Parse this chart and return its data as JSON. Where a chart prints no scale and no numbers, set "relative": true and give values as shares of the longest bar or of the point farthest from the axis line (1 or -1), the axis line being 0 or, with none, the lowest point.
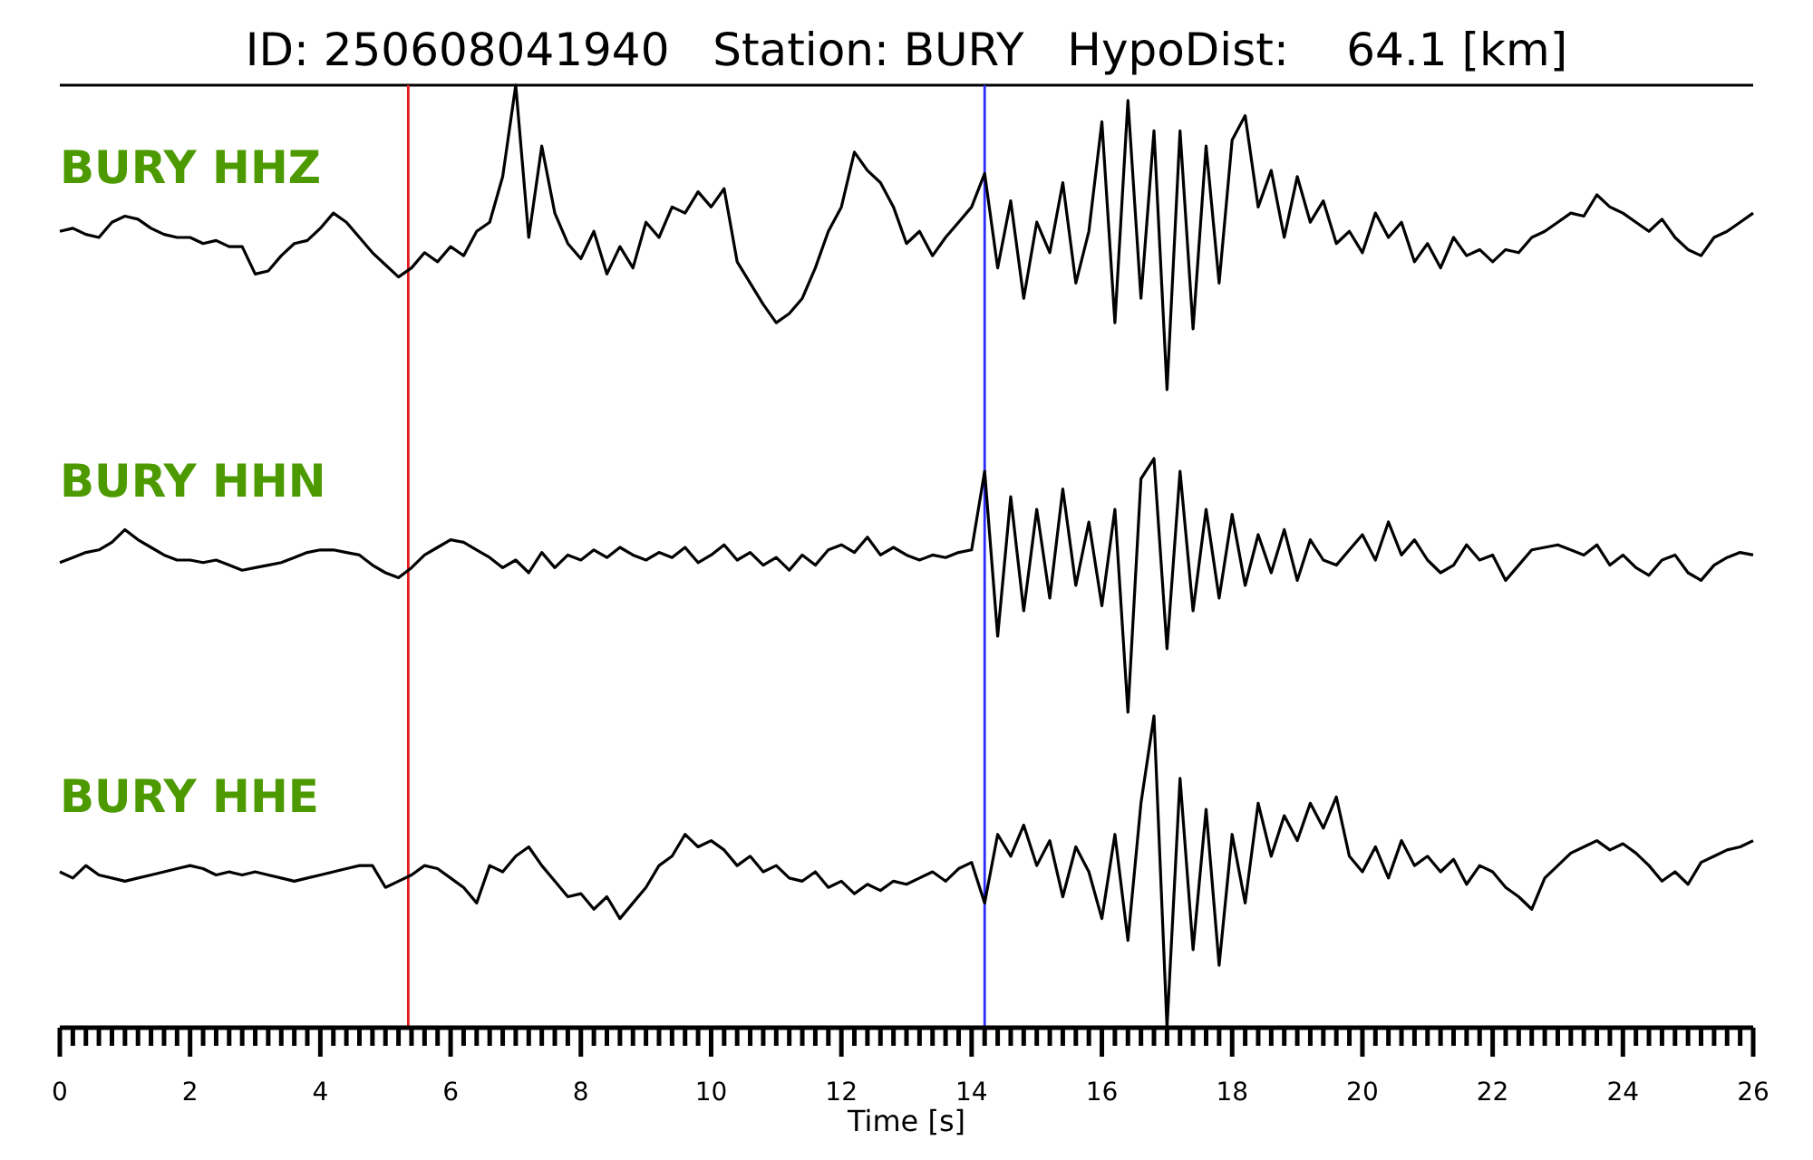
{
  "chart_data": [
    {
      "type": "line",
      "title": "ID: 250608041940   Station: BURY   HypoDist:    64.1 [km]",
      "subtitle": "BURY HHZ",
      "relative": true,
      "xlim": [
        0,
        26
      ],
      "tick_labels": false,
      "color": "#000000",
      "ref_lines": [
        {
          "axis": "x",
          "value": 5.35,
          "color": "#e31a1c"
        },
        {
          "axis": "x",
          "value": 14.2,
          "color": "#2b2bff"
        }
      ],
      "x": [
        0,
        0.2,
        0.4,
        0.6,
        0.8,
        1,
        1.2,
        1.4,
        1.6,
        1.8,
        2,
        2.2,
        2.4,
        2.6,
        2.8,
        3,
        3.2,
        3.4,
        3.6,
        3.8,
        4,
        4.2,
        4.4,
        4.6,
        4.8,
        5,
        5.2,
        5.4,
        5.6,
        5.8,
        6,
        6.2,
        6.4,
        6.6,
        6.8,
        7,
        7.2,
        7.4,
        7.6,
        7.8,
        8,
        8.2,
        8.4,
        8.6,
        8.8,
        9,
        9.2,
        9.4,
        9.6,
        9.8,
        10,
        10.2,
        10.4,
        10.6,
        10.8,
        11,
        11.2,
        11.4,
        11.6,
        11.8,
        12,
        12.2,
        12.4,
        12.6,
        12.8,
        13,
        13.2,
        13.4,
        13.6,
        13.8,
        14,
        14.2,
        14.4,
        14.6,
        14.8,
        15,
        15.2,
        15.4,
        15.6,
        15.8,
        16,
        16.2,
        16.4,
        16.6,
        16.8,
        17,
        17.2,
        17.4,
        17.6,
        17.8,
        18,
        18.2,
        18.4,
        18.6,
        18.8,
        19,
        19.2,
        19.4,
        19.6,
        19.8,
        20,
        20.2,
        20.4,
        20.6,
        20.8,
        21,
        21.2,
        21.4,
        21.6,
        21.8,
        22,
        22.2,
        22.4,
        22.6,
        22.8,
        23,
        23.2,
        23.4,
        23.6,
        23.8,
        24,
        24.2,
        24.4,
        24.6,
        24.8,
        25,
        25.2,
        25.4,
        25.6,
        25.8,
        26
      ],
      "values": [
        0.52,
        0.53,
        0.51,
        0.5,
        0.55,
        0.57,
        0.56,
        0.53,
        0.51,
        0.5,
        0.5,
        0.48,
        0.49,
        0.47,
        0.47,
        0.38,
        0.39,
        0.44,
        0.48,
        0.49,
        0.53,
        0.58,
        0.55,
        0.5,
        0.45,
        0.41,
        0.37,
        0.4,
        0.45,
        0.42,
        0.47,
        0.44,
        0.52,
        0.55,
        0.7,
        1.0,
        0.5,
        0.8,
        0.58,
        0.48,
        0.43,
        0.52,
        0.38,
        0.47,
        0.4,
        0.55,
        0.5,
        0.6,
        0.58,
        0.65,
        0.6,
        0.66,
        0.42,
        0.35,
        0.28,
        0.22,
        0.25,
        0.3,
        0.4,
        0.52,
        0.6,
        0.78,
        0.72,
        0.68,
        0.6,
        0.48,
        0.52,
        0.44,
        0.5,
        0.55,
        0.6,
        0.71,
        0.4,
        0.62,
        0.3,
        0.55,
        0.45,
        0.68,
        0.35,
        0.52,
        0.88,
        0.22,
        0.95,
        0.3,
        0.85,
        0.0,
        0.85,
        0.2,
        0.8,
        0.35,
        0.82,
        0.9,
        0.6,
        0.72,
        0.5,
        0.7,
        0.55,
        0.62,
        0.48,
        0.52,
        0.45,
        0.58,
        0.5,
        0.55,
        0.42,
        0.48,
        0.4,
        0.5,
        0.44,
        0.46,
        0.42,
        0.46,
        0.45,
        0.5,
        0.52,
        0.55,
        0.58,
        0.57,
        0.64,
        0.6,
        0.58,
        0.55,
        0.52,
        0.56,
        0.5,
        0.46,
        0.44,
        0.5,
        0.52,
        0.55,
        0.58
      ]
    },
    {
      "type": "line",
      "subtitle": "BURY HHN",
      "relative": true,
      "xlim": [
        0,
        26
      ],
      "tick_labels": false,
      "color": "#000000",
      "ref_lines": [
        {
          "axis": "x",
          "value": 5.35,
          "color": "#e31a1c"
        },
        {
          "axis": "x",
          "value": 14.2,
          "color": "#2b2bff"
        }
      ],
      "x": [
        0,
        0.2,
        0.4,
        0.6,
        0.8,
        1,
        1.2,
        1.4,
        1.6,
        1.8,
        2,
        2.2,
        2.4,
        2.6,
        2.8,
        3,
        3.2,
        3.4,
        3.6,
        3.8,
        4,
        4.2,
        4.4,
        4.6,
        4.8,
        5,
        5.2,
        5.4,
        5.6,
        5.8,
        6,
        6.2,
        6.4,
        6.6,
        6.8,
        7,
        7.2,
        7.4,
        7.6,
        7.8,
        8,
        8.2,
        8.4,
        8.6,
        8.8,
        9,
        9.2,
        9.4,
        9.6,
        9.8,
        10,
        10.2,
        10.4,
        10.6,
        10.8,
        11,
        11.2,
        11.4,
        11.6,
        11.8,
        12,
        12.2,
        12.4,
        12.6,
        12.8,
        13,
        13.2,
        13.4,
        13.6,
        13.8,
        14,
        14.2,
        14.4,
        14.6,
        14.8,
        15,
        15.2,
        15.4,
        15.6,
        15.8,
        16,
        16.2,
        16.4,
        16.6,
        16.8,
        17,
        17.2,
        17.4,
        17.6,
        17.8,
        18,
        18.2,
        18.4,
        18.6,
        18.8,
        19,
        19.2,
        19.4,
        19.6,
        19.8,
        20,
        20.2,
        20.4,
        20.6,
        20.8,
        21,
        21.2,
        21.4,
        21.6,
        21.8,
        22,
        22.2,
        22.4,
        22.6,
        22.8,
        23,
        23.2,
        23.4,
        23.6,
        23.8,
        24,
        24.2,
        24.4,
        24.6,
        24.8,
        25,
        25.2,
        25.4,
        25.6,
        25.8,
        26
      ],
      "values": [
        0.59,
        0.61,
        0.63,
        0.64,
        0.67,
        0.72,
        0.68,
        0.65,
        0.62,
        0.6,
        0.6,
        0.59,
        0.6,
        0.58,
        0.56,
        0.57,
        0.58,
        0.59,
        0.61,
        0.63,
        0.64,
        0.64,
        0.63,
        0.62,
        0.58,
        0.55,
        0.53,
        0.57,
        0.62,
        0.65,
        0.68,
        0.67,
        0.64,
        0.61,
        0.57,
        0.6,
        0.55,
        0.63,
        0.57,
        0.62,
        0.6,
        0.64,
        0.61,
        0.65,
        0.62,
        0.6,
        0.63,
        0.61,
        0.65,
        0.59,
        0.62,
        0.66,
        0.6,
        0.63,
        0.58,
        0.61,
        0.56,
        0.62,
        0.58,
        0.64,
        0.66,
        0.63,
        0.69,
        0.62,
        0.65,
        0.62,
        0.6,
        0.62,
        0.61,
        0.63,
        0.64,
        0.95,
        0.3,
        0.85,
        0.4,
        0.8,
        0.45,
        0.88,
        0.5,
        0.75,
        0.42,
        0.8,
        0.0,
        0.92,
        1.0,
        0.25,
        0.95,
        0.4,
        0.8,
        0.45,
        0.78,
        0.5,
        0.7,
        0.55,
        0.72,
        0.52,
        0.68,
        0.6,
        0.58,
        0.64,
        0.7,
        0.6,
        0.75,
        0.62,
        0.68,
        0.6,
        0.55,
        0.58,
        0.66,
        0.6,
        0.62,
        0.52,
        0.58,
        0.64,
        0.65,
        0.66,
        0.64,
        0.62,
        0.66,
        0.58,
        0.62,
        0.57,
        0.54,
        0.6,
        0.62,
        0.55,
        0.52,
        0.58,
        0.61,
        0.63,
        0.62
      ]
    },
    {
      "type": "line",
      "subtitle": "BURY HHE",
      "relative": true,
      "xlim": [
        0,
        26
      ],
      "xlabel": "Time [s]",
      "color": "#000000",
      "ref_lines": [
        {
          "axis": "x",
          "value": 5.35,
          "color": "#e31a1c"
        },
        {
          "axis": "x",
          "value": 14.2,
          "color": "#2b2bff"
        }
      ],
      "xticks": [
        0,
        {
          "value": 0.2,
          "label": null
        },
        {
          "value": 0.4,
          "label": null
        },
        {
          "value": 0.6,
          "label": null
        },
        {
          "value": 0.8,
          "label": null
        },
        {
          "value": 1,
          "label": null
        },
        {
          "value": 1.2,
          "label": null
        },
        {
          "value": 1.4,
          "label": null
        },
        {
          "value": 1.6,
          "label": null
        },
        {
          "value": 1.8,
          "label": null
        },
        2,
        {
          "value": 2.2,
          "label": null
        },
        {
          "value": 2.4,
          "label": null
        },
        {
          "value": 2.6,
          "label": null
        },
        {
          "value": 2.8,
          "label": null
        },
        {
          "value": 3,
          "label": null
        },
        {
          "value": 3.2,
          "label": null
        },
        {
          "value": 3.4,
          "label": null
        },
        {
          "value": 3.6,
          "label": null
        },
        {
          "value": 3.8,
          "label": null
        },
        4,
        {
          "value": 4.2,
          "label": null
        },
        {
          "value": 4.4,
          "label": null
        },
        {
          "value": 4.6,
          "label": null
        },
        {
          "value": 4.8,
          "label": null
        },
        {
          "value": 5,
          "label": null
        },
        {
          "value": 5.2,
          "label": null
        },
        {
          "value": 5.4,
          "label": null
        },
        {
          "value": 5.6,
          "label": null
        },
        {
          "value": 5.8,
          "label": null
        },
        6,
        {
          "value": 6.2,
          "label": null
        },
        {
          "value": 6.4,
          "label": null
        },
        {
          "value": 6.6,
          "label": null
        },
        {
          "value": 6.8,
          "label": null
        },
        {
          "value": 7,
          "label": null
        },
        {
          "value": 7.2,
          "label": null
        },
        {
          "value": 7.4,
          "label": null
        },
        {
          "value": 7.6,
          "label": null
        },
        {
          "value": 7.8,
          "label": null
        },
        8,
        {
          "value": 8.2,
          "label": null
        },
        {
          "value": 8.4,
          "label": null
        },
        {
          "value": 8.6,
          "label": null
        },
        {
          "value": 8.8,
          "label": null
        },
        {
          "value": 9,
          "label": null
        },
        {
          "value": 9.2,
          "label": null
        },
        {
          "value": 9.4,
          "label": null
        },
        {
          "value": 9.6,
          "label": null
        },
        {
          "value": 9.8,
          "label": null
        },
        10,
        {
          "value": 10.2,
          "label": null
        },
        {
          "value": 10.4,
          "label": null
        },
        {
          "value": 10.6,
          "label": null
        },
        {
          "value": 10.8,
          "label": null
        },
        {
          "value": 11,
          "label": null
        },
        {
          "value": 11.2,
          "label": null
        },
        {
          "value": 11.4,
          "label": null
        },
        {
          "value": 11.6,
          "label": null
        },
        {
          "value": 11.8,
          "label": null
        },
        12,
        {
          "value": 12.2,
          "label": null
        },
        {
          "value": 12.4,
          "label": null
        },
        {
          "value": 12.6,
          "label": null
        },
        {
          "value": 12.8,
          "label": null
        },
        {
          "value": 13,
          "label": null
        },
        {
          "value": 13.2,
          "label": null
        },
        {
          "value": 13.4,
          "label": null
        },
        {
          "value": 13.6,
          "label": null
        },
        {
          "value": 13.8,
          "label": null
        },
        14,
        {
          "value": 14.2,
          "label": null
        },
        {
          "value": 14.4,
          "label": null
        },
        {
          "value": 14.6,
          "label": null
        },
        {
          "value": 14.8,
          "label": null
        },
        {
          "value": 15,
          "label": null
        },
        {
          "value": 15.2,
          "label": null
        },
        {
          "value": 15.4,
          "label": null
        },
        {
          "value": 15.6,
          "label": null
        },
        {
          "value": 15.8,
          "label": null
        },
        16,
        {
          "value": 16.2,
          "label": null
        },
        {
          "value": 16.4,
          "label": null
        },
        {
          "value": 16.6,
          "label": null
        },
        {
          "value": 16.8,
          "label": null
        },
        {
          "value": 17,
          "label": null
        },
        {
          "value": 17.2,
          "label": null
        },
        {
          "value": 17.4,
          "label": null
        },
        {
          "value": 17.6,
          "label": null
        },
        {
          "value": 17.8,
          "label": null
        },
        18,
        {
          "value": 18.2,
          "label": null
        },
        {
          "value": 18.4,
          "label": null
        },
        {
          "value": 18.6,
          "label": null
        },
        {
          "value": 18.8,
          "label": null
        },
        {
          "value": 19,
          "label": null
        },
        {
          "value": 19.2,
          "label": null
        },
        {
          "value": 19.4,
          "label": null
        },
        {
          "value": 19.6,
          "label": null
        },
        {
          "value": 19.8,
          "label": null
        },
        20,
        {
          "value": 20.2,
          "label": null
        },
        {
          "value": 20.4,
          "label": null
        },
        {
          "value": 20.6,
          "label": null
        },
        {
          "value": 20.8,
          "label": null
        },
        {
          "value": 21,
          "label": null
        },
        {
          "value": 21.2,
          "label": null
        },
        {
          "value": 21.4,
          "label": null
        },
        {
          "value": 21.6,
          "label": null
        },
        {
          "value": 21.8,
          "label": null
        },
        22,
        {
          "value": 22.2,
          "label": null
        },
        {
          "value": 22.4,
          "label": null
        },
        {
          "value": 22.6,
          "label": null
        },
        {
          "value": 22.8,
          "label": null
        },
        {
          "value": 23,
          "label": null
        },
        {
          "value": 23.2,
          "label": null
        },
        {
          "value": 23.4,
          "label": null
        },
        {
          "value": 23.6,
          "label": null
        },
        {
          "value": 23.8,
          "label": null
        },
        24,
        {
          "value": 24.2,
          "label": null
        },
        {
          "value": 24.4,
          "label": null
        },
        {
          "value": 24.6,
          "label": null
        },
        {
          "value": 24.8,
          "label": null
        },
        {
          "value": 25,
          "label": null
        },
        {
          "value": 25.2,
          "label": null
        },
        {
          "value": 25.4,
          "label": null
        },
        {
          "value": 25.6,
          "label": null
        },
        {
          "value": 25.8,
          "label": null
        },
        26
      ],
      "x": [
        0,
        0.2,
        0.4,
        0.6,
        0.8,
        1,
        1.2,
        1.4,
        1.6,
        1.8,
        2,
        2.2,
        2.4,
        2.6,
        2.8,
        3,
        3.2,
        3.4,
        3.6,
        3.8,
        4,
        4.2,
        4.4,
        4.6,
        4.8,
        5,
        5.2,
        5.4,
        5.6,
        5.8,
        6,
        6.2,
        6.4,
        6.6,
        6.8,
        7,
        7.2,
        7.4,
        7.6,
        7.8,
        8,
        8.2,
        8.4,
        8.6,
        8.8,
        9,
        9.2,
        9.4,
        9.6,
        9.8,
        10,
        10.2,
        10.4,
        10.6,
        10.8,
        11,
        11.2,
        11.4,
        11.6,
        11.8,
        12,
        12.2,
        12.4,
        12.6,
        12.8,
        13,
        13.2,
        13.4,
        13.6,
        13.8,
        14,
        14.2,
        14.4,
        14.6,
        14.8,
        15,
        15.2,
        15.4,
        15.6,
        15.8,
        16,
        16.2,
        16.4,
        16.6,
        16.8,
        17,
        17.2,
        17.4,
        17.6,
        17.8,
        18,
        18.2,
        18.4,
        18.6,
        18.8,
        19,
        19.2,
        19.4,
        19.6,
        19.8,
        20,
        20.2,
        20.4,
        20.6,
        20.8,
        21,
        21.2,
        21.4,
        21.6,
        21.8,
        22,
        22.2,
        22.4,
        22.6,
        22.8,
        23,
        23.2,
        23.4,
        23.6,
        23.8,
        24,
        24.2,
        24.4,
        24.6,
        24.8,
        25,
        25.2,
        25.4,
        25.6,
        25.8,
        26
      ],
      "values": [
        0.5,
        0.48,
        0.52,
        0.49,
        0.48,
        0.47,
        0.48,
        0.49,
        0.5,
        0.51,
        0.52,
        0.51,
        0.49,
        0.5,
        0.49,
        0.5,
        0.49,
        0.48,
        0.47,
        0.48,
        0.49,
        0.5,
        0.51,
        0.52,
        0.52,
        0.45,
        0.47,
        0.49,
        0.52,
        0.51,
        0.48,
        0.45,
        0.4,
        0.52,
        0.5,
        0.55,
        0.58,
        0.52,
        0.47,
        0.42,
        0.43,
        0.38,
        0.42,
        0.35,
        0.4,
        0.45,
        0.52,
        0.55,
        0.62,
        0.58,
        0.6,
        0.57,
        0.52,
        0.55,
        0.5,
        0.52,
        0.48,
        0.47,
        0.5,
        0.45,
        0.47,
        0.43,
        0.46,
        0.44,
        0.47,
        0.46,
        0.48,
        0.5,
        0.47,
        0.51,
        0.53,
        0.4,
        0.62,
        0.55,
        0.65,
        0.52,
        0.6,
        0.42,
        0.58,
        0.5,
        0.35,
        0.62,
        0.28,
        0.72,
        1.0,
        0.0,
        0.8,
        0.25,
        0.7,
        0.2,
        0.62,
        0.4,
        0.72,
        0.55,
        0.68,
        0.6,
        0.72,
        0.64,
        0.74,
        0.55,
        0.5,
        0.58,
        0.48,
        0.6,
        0.52,
        0.55,
        0.5,
        0.54,
        0.46,
        0.52,
        0.5,
        0.45,
        0.42,
        0.38,
        0.48,
        0.52,
        0.56,
        0.58,
        0.6,
        0.57,
        0.59,
        0.56,
        0.52,
        0.47,
        0.5,
        0.46,
        0.53,
        0.55,
        0.57,
        0.58,
        0.6
      ]
    }
  ]
}
